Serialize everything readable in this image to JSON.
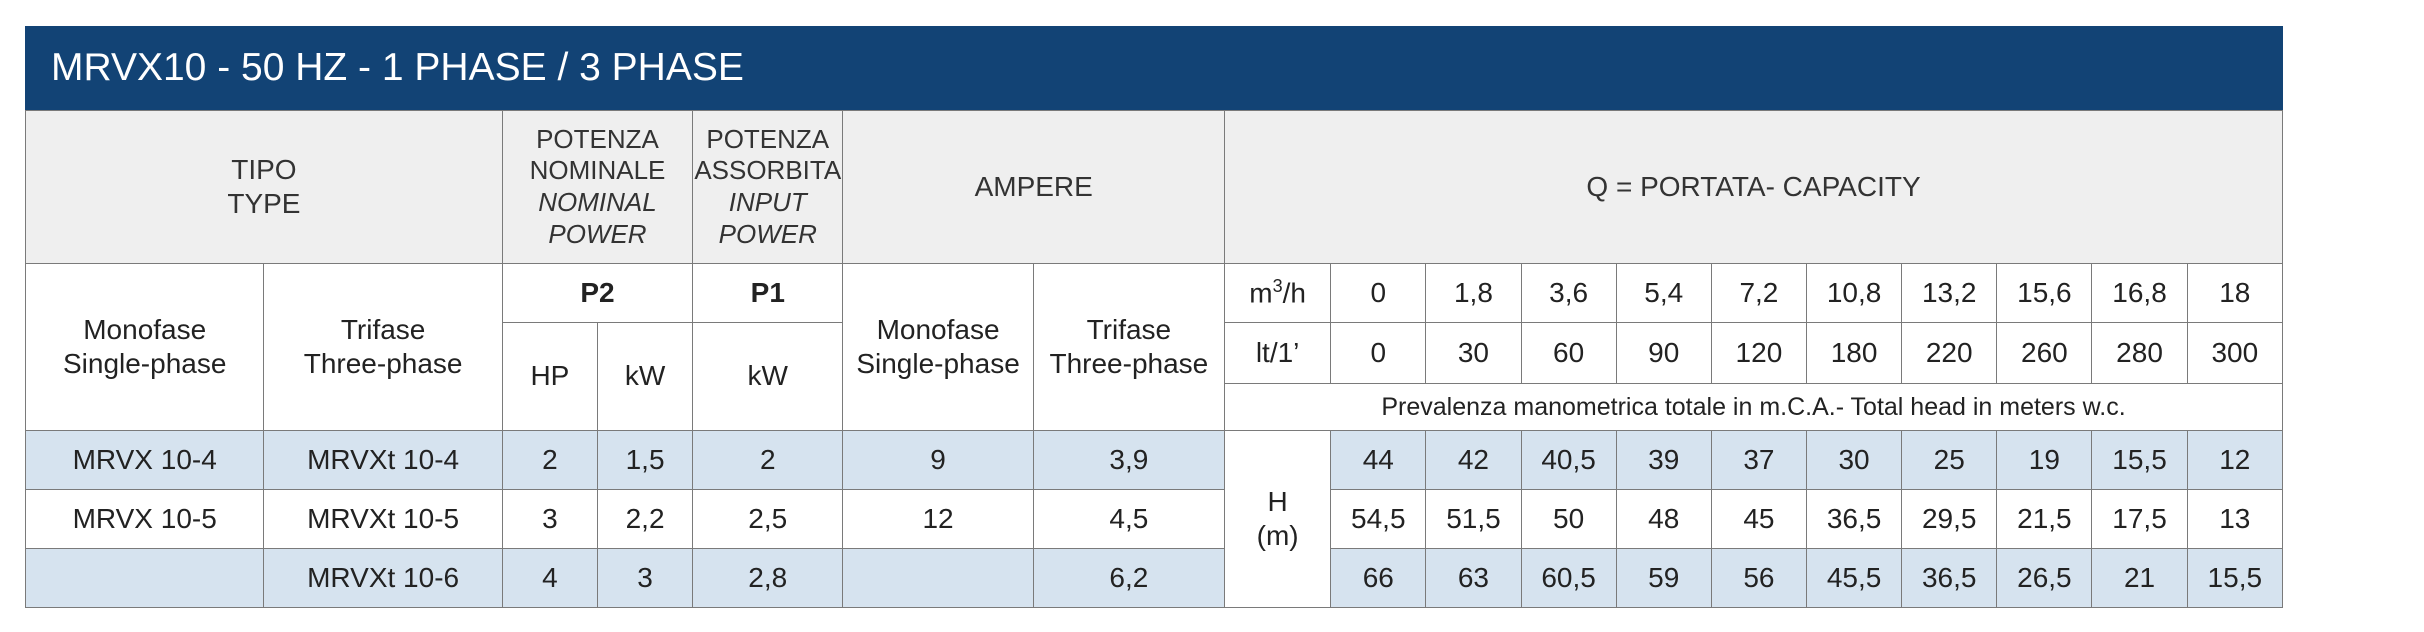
{
  "title": "MRVX10 - 50 HZ - 1 PHASE / 3 PHASE",
  "header": {
    "tipo": "TIPO",
    "type": "TYPE",
    "potenza_nominale_1": "POTENZA",
    "potenza_nominale_2": "NOMINALE",
    "nominal_1": "NOMINAL",
    "nominal_2": "POWER",
    "potenza_assorbita_1": "POTENZA",
    "potenza_assorbita_2": "ASSORBITA",
    "input_1": "INPUT",
    "input_2": "POWER",
    "ampere": "AMPERE",
    "capacity": "Q = PORTATA- CAPACITY"
  },
  "subheader": {
    "monofase": "Monofase",
    "single_phase": "Single-phase",
    "trifase": "Trifase",
    "three_phase": "Three-phase",
    "p2": "P2",
    "p1": "P1",
    "hp": "HP",
    "kw": "kW",
    "kw2": "kW",
    "amp_monofase": "Monofase",
    "amp_single_phase": "Single-phase",
    "amp_trifase": "Trifase",
    "amp_three_phase": "Three-phase",
    "unit_m3h_base": "m",
    "unit_m3h_sup": "3",
    "unit_m3h_rest": "/h",
    "unit_lt": "lt/1’",
    "m3h": [
      "0",
      "1,8",
      "3,6",
      "5,4",
      "7,2",
      "10,8",
      "13,2",
      "15,6",
      "16,8",
      "18"
    ],
    "lt": [
      "0",
      "30",
      "60",
      "90",
      "120",
      "180",
      "220",
      "260",
      "280",
      "300"
    ],
    "head_note": "Prevalenza manometrica totale in m.C.A.- Total head in meters w.c.",
    "h_label": "H",
    "h_unit": "(m)"
  },
  "rows": [
    {
      "mono": "MRVX 10-4",
      "tri": "MRVXt 10-4",
      "hp": "2",
      "kw": "1,5",
      "p1": "2",
      "amp_mono": "9",
      "amp_tri": "3,9",
      "head": [
        "44",
        "42",
        "40,5",
        "39",
        "37",
        "30",
        "25",
        "19",
        "15,5",
        "12"
      ]
    },
    {
      "mono": "MRVX 10-5",
      "tri": "MRVXt 10-5",
      "hp": "3",
      "kw": "2,2",
      "p1": "2,5",
      "amp_mono": "12",
      "amp_tri": "4,5",
      "head": [
        "54,5",
        "51,5",
        "50",
        "48",
        "45",
        "36,5",
        "29,5",
        "21,5",
        "17,5",
        "13"
      ]
    },
    {
      "mono": "",
      "tri": "MRVXt 10-6",
      "hp": "4",
      "kw": "3",
      "p1": "2,8",
      "amp_mono": "",
      "amp_tri": "6,2",
      "head": [
        "66",
        "63",
        "60,5",
        "59",
        "56",
        "45,5",
        "36,5",
        "26,5",
        "21",
        "15,5"
      ]
    }
  ]
}
